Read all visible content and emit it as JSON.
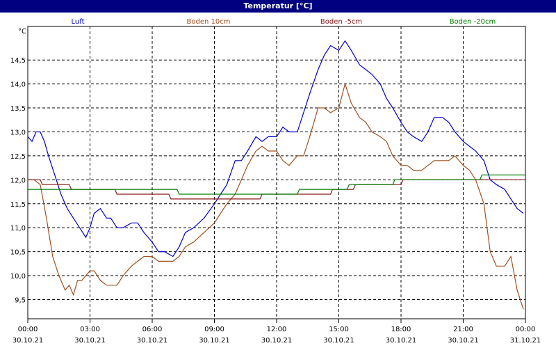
{
  "window": {
    "title": "Temperatur [°C]"
  },
  "chart_data": {
    "type": "line",
    "ylabel": "°C",
    "ylim": [
      9.1,
      15.2
    ],
    "y_ticks": [
      "9,5",
      "10,0",
      "10,5",
      "11,0",
      "11,5",
      "12,0",
      "12,5",
      "13,0",
      "13,5",
      "14,0",
      "14,5"
    ],
    "y_tick_values": [
      9.5,
      10.0,
      10.5,
      11.0,
      11.5,
      12.0,
      12.5,
      13.0,
      13.5,
      14.0,
      14.5
    ],
    "x_ticks": [
      {
        "time": "00:00",
        "date": "30.10.21"
      },
      {
        "time": "03:00",
        "date": "30.10.21"
      },
      {
        "time": "06:00",
        "date": "30.10.21"
      },
      {
        "time": "09:00",
        "date": "30.10.21"
      },
      {
        "time": "12:00",
        "date": "30.10.21"
      },
      {
        "time": "15:00",
        "date": "30.10.21"
      },
      {
        "time": "18:00",
        "date": "30.10.21"
      },
      {
        "time": "21:00",
        "date": "30.10.21"
      },
      {
        "time": "00:00",
        "date": "31.10.21"
      }
    ],
    "x_unit": "hours",
    "xlim": [
      0,
      24
    ],
    "grid": true,
    "legend_position": "top",
    "series": [
      {
        "name": "Luft",
        "color": "#0000cc",
        "x": [
          0,
          0.2,
          0.4,
          0.6,
          0.8,
          1.0,
          1.3,
          1.6,
          1.9,
          2.2,
          2.5,
          2.8,
          3.0,
          3.2,
          3.5,
          3.8,
          4.0,
          4.3,
          4.6,
          5.0,
          5.3,
          5.6,
          6.0,
          6.3,
          6.6,
          7.0,
          7.3,
          7.6,
          8.0,
          8.5,
          9.0,
          9.3,
          9.6,
          10.0,
          10.3,
          10.6,
          11.0,
          11.3,
          11.6,
          12.0,
          12.3,
          12.6,
          13.0,
          13.3,
          13.6,
          14.0,
          14.3,
          14.6,
          15.0,
          15.3,
          15.6,
          16.0,
          16.3,
          16.6,
          17.0,
          17.3,
          17.6,
          18.0,
          18.3,
          18.6,
          19.0,
          19.3,
          19.6,
          20.0,
          20.3,
          20.6,
          21.0,
          21.3,
          21.6,
          22.0,
          22.3,
          22.6,
          23.0,
          23.3,
          23.6,
          23.9
        ],
        "y": [
          12.9,
          12.8,
          13.0,
          13.0,
          12.8,
          12.5,
          12.1,
          11.7,
          11.4,
          11.2,
          11.0,
          10.8,
          11.0,
          11.3,
          11.4,
          11.2,
          11.2,
          11.0,
          11.0,
          11.1,
          11.1,
          10.9,
          10.7,
          10.5,
          10.5,
          10.4,
          10.6,
          10.9,
          11.0,
          11.2,
          11.5,
          11.7,
          11.9,
          12.4,
          12.4,
          12.6,
          12.9,
          12.8,
          12.9,
          12.9,
          13.1,
          13.0,
          13.0,
          13.4,
          13.8,
          14.3,
          14.6,
          14.8,
          14.7,
          14.9,
          14.7,
          14.4,
          14.3,
          14.2,
          14.0,
          13.7,
          13.5,
          13.2,
          13.0,
          12.9,
          12.8,
          13.0,
          13.3,
          13.3,
          13.2,
          13.0,
          12.8,
          12.7,
          12.6,
          12.4,
          12.0,
          11.9,
          11.8,
          11.6,
          11.4,
          11.3
        ]
      },
      {
        "name": "Boden 10cm",
        "color": "#a0501e",
        "x": [
          0,
          0.3,
          0.6,
          0.9,
          1.2,
          1.5,
          1.8,
          2.0,
          2.2,
          2.4,
          2.6,
          2.8,
          3.0,
          3.2,
          3.5,
          3.8,
          4.0,
          4.3,
          4.6,
          5.0,
          5.3,
          5.6,
          6.0,
          6.3,
          6.6,
          7.0,
          7.3,
          7.6,
          8.0,
          8.5,
          9.0,
          9.3,
          9.6,
          10.0,
          10.3,
          10.6,
          11.0,
          11.3,
          11.6,
          12.0,
          12.3,
          12.6,
          13.0,
          13.3,
          13.6,
          14.0,
          14.3,
          14.6,
          15.0,
          15.3,
          15.6,
          16.0,
          16.3,
          16.6,
          17.0,
          17.3,
          17.6,
          18.0,
          18.3,
          18.6,
          19.0,
          19.3,
          19.6,
          20.0,
          20.3,
          20.6,
          21.0,
          21.3,
          21.6,
          22.0,
          22.3,
          22.6,
          23.0,
          23.3,
          23.6,
          23.9
        ],
        "y": [
          12.0,
          12.0,
          11.9,
          11.2,
          10.4,
          10.0,
          9.7,
          9.8,
          9.6,
          9.9,
          9.9,
          10.0,
          10.1,
          10.1,
          9.9,
          9.8,
          9.8,
          9.8,
          10.0,
          10.2,
          10.3,
          10.4,
          10.4,
          10.3,
          10.3,
          10.3,
          10.4,
          10.6,
          10.7,
          10.9,
          11.1,
          11.3,
          11.5,
          11.7,
          12.0,
          12.3,
          12.6,
          12.7,
          12.6,
          12.6,
          12.4,
          12.3,
          12.5,
          12.5,
          12.9,
          13.5,
          13.5,
          13.4,
          13.5,
          14.0,
          13.6,
          13.3,
          13.2,
          13.0,
          12.9,
          12.8,
          12.5,
          12.3,
          12.3,
          12.2,
          12.2,
          12.3,
          12.4,
          12.4,
          12.4,
          12.5,
          12.3,
          12.2,
          12.0,
          11.5,
          10.5,
          10.2,
          10.2,
          10.4,
          9.7,
          9.3
        ]
      },
      {
        "name": "Boden -5cm",
        "color": "#8b1a1a",
        "x": [
          0,
          0.6,
          0.7,
          2.0,
          2.1,
          4.2,
          4.3,
          6.8,
          6.9,
          11.2,
          11.3,
          14.6,
          14.7,
          15.7,
          15.8,
          18.0,
          18.1,
          24.0
        ],
        "y": [
          12.0,
          12.0,
          11.9,
          11.9,
          11.8,
          11.8,
          11.7,
          11.7,
          11.6,
          11.6,
          11.7,
          11.7,
          11.8,
          11.8,
          11.9,
          11.9,
          12.0,
          12.0
        ]
      },
      {
        "name": "Boden -20cm",
        "color": "#008000",
        "x": [
          0,
          7.2,
          7.3,
          13.0,
          13.1,
          15.4,
          15.5,
          17.6,
          17.7,
          21.8,
          21.9,
          24.0
        ],
        "y": [
          11.8,
          11.8,
          11.7,
          11.7,
          11.8,
          11.8,
          11.9,
          11.9,
          12.0,
          12.0,
          12.1,
          12.1
        ]
      }
    ]
  }
}
